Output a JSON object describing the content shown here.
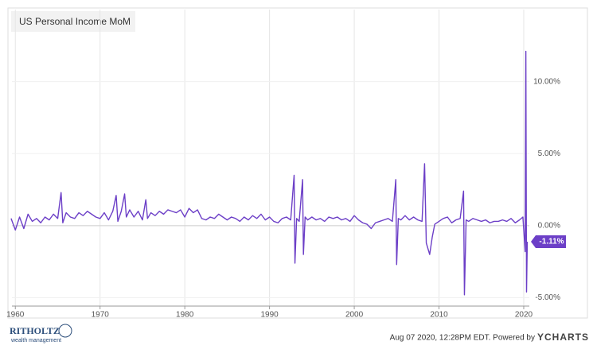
{
  "chart_data": {
    "type": "line",
    "title": "US Personal Income MoM",
    "x": [
      1959.5,
      1960,
      1960.5,
      1961,
      1961.5,
      1962,
      1962.5,
      1963,
      1963.5,
      1964,
      1964.5,
      1965,
      1965.4,
      1965.6,
      1966,
      1966.5,
      1967,
      1967.5,
      1968,
      1968.5,
      1969,
      1969.5,
      1970,
      1970.5,
      1971,
      1971.5,
      1971.9,
      1972.1,
      1972.5,
      1972.9,
      1973.1,
      1973.5,
      1974,
      1974.5,
      1975,
      1975.4,
      1975.6,
      1976,
      1976.5,
      1977,
      1977.5,
      1978,
      1978.5,
      1979,
      1979.5,
      1980,
      1980.5,
      1981,
      1981.5,
      1982,
      1982.5,
      1983,
      1983.5,
      1984,
      1984.5,
      1985,
      1985.5,
      1986,
      1986.5,
      1987,
      1987.5,
      1988,
      1988.5,
      1989,
      1989.5,
      1990,
      1990.5,
      1991,
      1991.5,
      1992,
      1992.5,
      1992.9,
      1993,
      1993.2,
      1993.5,
      1993.9,
      1994,
      1994.2,
      1994.5,
      1995,
      1995.5,
      1996,
      1996.5,
      1997,
      1997.5,
      1998,
      1998.5,
      1999,
      1999.5,
      2000,
      2000.5,
      2001,
      2001.5,
      2002,
      2002.5,
      2003,
      2003.5,
      2004,
      2004.5,
      2004.9,
      2005,
      2005.2,
      2005.5,
      2006,
      2006.5,
      2007,
      2007.5,
      2008,
      2008.3,
      2008.5,
      2008.9,
      2009.2,
      2009.5,
      2010,
      2010.5,
      2011,
      2011.5,
      2012,
      2012.5,
      2012.9,
      2013,
      2013.2,
      2013.5,
      2014,
      2014.5,
      2015,
      2015.5,
      2016,
      2016.5,
      2017,
      2017.5,
      2018,
      2018.5,
      2019,
      2019.5,
      2019.9,
      2020.17,
      2020.25,
      2020.33,
      2020.42
    ],
    "series": [
      {
        "name": "US Personal Income MoM",
        "color": "#6c3fc7",
        "values": [
          0.5,
          -0.3,
          0.6,
          -0.2,
          0.8,
          0.3,
          0.5,
          0.2,
          0.6,
          0.4,
          0.8,
          0.5,
          2.3,
          0.2,
          0.9,
          0.6,
          0.5,
          0.9,
          0.7,
          1.0,
          0.8,
          0.6,
          0.5,
          0.9,
          0.4,
          1.0,
          2.1,
          0.3,
          1.0,
          2.2,
          0.6,
          1.1,
          0.6,
          1.0,
          0.4,
          1.8,
          0.5,
          0.9,
          0.7,
          1.0,
          0.8,
          1.1,
          1.0,
          0.9,
          1.1,
          0.6,
          1.2,
          0.9,
          1.1,
          0.5,
          0.4,
          0.6,
          0.5,
          0.8,
          0.6,
          0.4,
          0.6,
          0.5,
          0.3,
          0.6,
          0.4,
          0.7,
          0.5,
          0.8,
          0.4,
          0.6,
          0.3,
          0.2,
          0.5,
          0.6,
          0.4,
          3.5,
          -2.6,
          0.5,
          0.3,
          3.2,
          -2.0,
          0.6,
          0.4,
          0.6,
          0.4,
          0.5,
          0.3,
          0.6,
          0.5,
          0.6,
          0.4,
          0.5,
          0.3,
          0.7,
          0.4,
          0.2,
          0.1,
          -0.2,
          0.2,
          0.3,
          0.4,
          0.5,
          0.3,
          3.2,
          -2.7,
          0.5,
          0.4,
          0.7,
          0.4,
          0.6,
          0.4,
          0.3,
          4.3,
          -1.2,
          -2.0,
          -0.8,
          0.1,
          0.3,
          0.5,
          0.6,
          0.2,
          0.4,
          0.5,
          2.4,
          -4.8,
          0.4,
          0.3,
          0.5,
          0.4,
          0.3,
          0.4,
          0.2,
          0.3,
          0.3,
          0.4,
          0.3,
          0.5,
          0.2,
          0.4,
          0.6,
          -1.8,
          12.1,
          -4.6,
          -1.11
        ],
        "value_labels": [
          null,
          null,
          null,
          null,
          null,
          null,
          null,
          null,
          null,
          null,
          null,
          null,
          null,
          null,
          null,
          null,
          null,
          null,
          null,
          null,
          null,
          null,
          null,
          null,
          null,
          null,
          null,
          null,
          null,
          null,
          null,
          null,
          null,
          null,
          null,
          null,
          null,
          null,
          null,
          null,
          null,
          null,
          null,
          null,
          null,
          null,
          null,
          null,
          null,
          null,
          null,
          null,
          null,
          null,
          null,
          null,
          null,
          null,
          null,
          null,
          null,
          null,
          null,
          null,
          null,
          null,
          null,
          null,
          null,
          null,
          null,
          null,
          null,
          null,
          null,
          null,
          null,
          null,
          null,
          null,
          null,
          null,
          null,
          null,
          null,
          null,
          null,
          null,
          null,
          null,
          null,
          null,
          null,
          null,
          null,
          null,
          null,
          null,
          null,
          null,
          null,
          null,
          null,
          null,
          null,
          null,
          null,
          null,
          null,
          null,
          null,
          null,
          null,
          null,
          null,
          null,
          null,
          null,
          null,
          null,
          null,
          null,
          null,
          null,
          null,
          null,
          null,
          null,
          null,
          null,
          null,
          null,
          null,
          null,
          null,
          null,
          null,
          null,
          null,
          "-1.11%"
        ]
      }
    ],
    "xlim": [
      1959.6,
      2020.66
    ],
    "xticks": [
      1960,
      1970,
      1980,
      1990,
      2000,
      2010,
      2020
    ],
    "ylim": [
      -5.58,
      15.0
    ],
    "yticks": [
      {
        "value": -5,
        "label": "-5.00%"
      },
      {
        "value": 0,
        "label": "0.00%"
      },
      {
        "value": 5,
        "label": "5.00%"
      },
      {
        "value": 10,
        "label": "10.00%"
      }
    ],
    "grid": true,
    "source": "Aug 07 2020, 12:28PM EDT. Powered by",
    "brand": "YCHARTS",
    "logo": "RITHOLTZ",
    "logo_sub": "wealth management"
  }
}
